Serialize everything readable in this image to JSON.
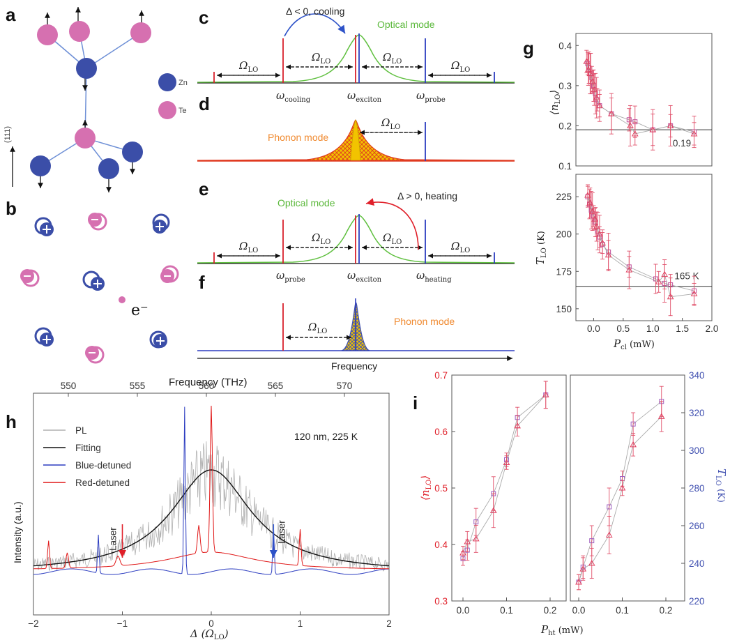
{
  "panel_labels": {
    "a": "a",
    "b": "b",
    "c": "c",
    "d": "d",
    "e": "e",
    "f": "f",
    "g": "g",
    "h": "h",
    "i": "i"
  },
  "panel_a": {
    "legend_zn": "Zn",
    "legend_te": "Te",
    "axis": "(111)",
    "zn_color": "#3b4ea8",
    "te_color": "#d670b0"
  },
  "panel_b": {
    "electron": "e⁻"
  },
  "panel_c": {
    "annotation": "Δ < 0, cooling",
    "mode_label": "Optical mode",
    "omega_lo": "ΩLO",
    "freq_labels": [
      "ωcooling",
      "ωexciton",
      "ωprobe"
    ]
  },
  "panel_d": {
    "mode_label": "Phonon mode",
    "omega_lo": "ΩLO"
  },
  "panel_e": {
    "annotation": "Δ > 0, heating",
    "mode_label": "Optical mode",
    "freq_labels": [
      "ωprobe",
      "ωexciton",
      "ωheating"
    ]
  },
  "panel_f": {
    "mode_label": "Phonon mode",
    "omega_lo": "ΩLO",
    "xlabel": "Frequency"
  },
  "chart_data": [
    {
      "id": "g-top",
      "type": "scatter",
      "ylabel": "⟨nLO⟩",
      "xlim": [
        -0.3,
        2.0
      ],
      "ylim": [
        0.1,
        0.43
      ],
      "yticks": [
        "0.4",
        "0.3",
        "0.2",
        "0.1"
      ],
      "reference_line": {
        "value": 0.19,
        "label": "0.19"
      },
      "series": [
        {
          "marker": "square",
          "x": [
            -0.1,
            -0.08,
            -0.05,
            -0.03,
            0.0,
            0.03,
            0.06,
            0.1,
            0.3,
            0.6,
            0.7,
            1.0,
            1.3,
            1.7
          ],
          "y": [
            0.355,
            0.345,
            0.33,
            0.32,
            0.3,
            0.28,
            0.265,
            0.25,
            0.23,
            0.215,
            0.21,
            0.19,
            0.2,
            0.185
          ]
        },
        {
          "marker": "triangle",
          "x": [
            -0.12,
            -0.09,
            -0.06,
            -0.02,
            0.01,
            0.05,
            0.1,
            0.3,
            0.62,
            0.7,
            1.0,
            1.3,
            1.7
          ],
          "y": [
            0.36,
            0.34,
            0.33,
            0.31,
            0.29,
            0.27,
            0.25,
            0.23,
            0.2,
            0.18,
            0.19,
            0.2,
            0.18
          ]
        }
      ]
    },
    {
      "id": "g-bottom",
      "type": "scatter",
      "ylabel": "TLO (K)",
      "xlabel": "Pcl (mW)",
      "xlim": [
        -0.3,
        2.0
      ],
      "ylim": [
        142,
        240
      ],
      "yticks": [
        "225",
        "200",
        "175",
        "150"
      ],
      "xticks": [
        "0.0",
        "0.5",
        "1.0",
        "1.5",
        "2.0"
      ],
      "reference_line": {
        "value": 165,
        "label": "165 K"
      },
      "series": [
        {
          "marker": "square",
          "x": [
            -0.1,
            -0.07,
            -0.04,
            0.0,
            0.03,
            0.07,
            0.1,
            0.15,
            0.25,
            0.6,
            1.05,
            1.2,
            1.3,
            1.7
          ],
          "y": [
            225,
            220,
            216,
            212,
            208,
            202,
            198,
            193,
            188,
            178,
            170,
            167,
            166,
            162
          ]
        },
        {
          "marker": "triangle",
          "x": [
            -0.1,
            -0.06,
            -0.02,
            0.02,
            0.05,
            0.1,
            0.15,
            0.25,
            0.6,
            1.1,
            1.2,
            1.3,
            1.7
          ],
          "y": [
            226,
            221,
            215,
            210,
            205,
            200,
            194,
            186,
            176,
            168,
            173,
            158,
            160
          ]
        }
      ]
    },
    {
      "id": "h",
      "type": "line",
      "xlabel": "Δ (ΩLO)",
      "ylabel": "Intensity (a.u.)",
      "top_xlabel": "Frequency (THz)",
      "xlim": [
        -2,
        2
      ],
      "xticks": [
        "−2",
        "−1",
        "0",
        "1",
        "2"
      ],
      "top_xticks": [
        "550",
        "555",
        "560",
        "565",
        "570"
      ],
      "annotation": "120 nm, 225 K",
      "laser_labels": [
        "Laser",
        "Laser"
      ],
      "series": [
        {
          "name": "PL",
          "color": "#b0b0b0"
        },
        {
          "name": "Fitting",
          "color": "#111111"
        },
        {
          "name": "Blue-detuned",
          "color": "#2b3cc0"
        },
        {
          "name": "Red-detuned",
          "color": "#e01818"
        }
      ]
    },
    {
      "id": "i-left",
      "type": "scatter",
      "ylabel": "⟨nLO⟩",
      "ylim": [
        0.3,
        0.7
      ],
      "yticks": [
        "0.7",
        "0.6",
        "0.5",
        "0.4",
        "0.3"
      ],
      "xticks": [
        "0.0",
        "0.1",
        "0.2"
      ],
      "series": [
        {
          "marker": "square",
          "x": [
            0.0,
            0.01,
            0.03,
            0.07,
            0.1,
            0.125,
            0.19
          ],
          "y": [
            0.375,
            0.39,
            0.44,
            0.49,
            0.55,
            0.625,
            0.665
          ]
        },
        {
          "marker": "triangle",
          "x": [
            0.0,
            0.01,
            0.03,
            0.07,
            0.1,
            0.125,
            0.19
          ],
          "y": [
            0.385,
            0.405,
            0.41,
            0.46,
            0.545,
            0.61,
            0.665
          ]
        }
      ]
    },
    {
      "id": "i-right",
      "type": "scatter",
      "ylabel": "TLO (K)",
      "xlabel": "Pht (mW)",
      "ylim": [
        220,
        340
      ],
      "yticks": [
        "340",
        "320",
        "300",
        "280",
        "260",
        "240",
        "220"
      ],
      "xticks": [
        "0.0",
        "0.1",
        "0.2"
      ],
      "series": [
        {
          "marker": "square",
          "x": [
            0.0,
            0.01,
            0.03,
            0.07,
            0.1,
            0.125,
            0.19
          ],
          "y": [
            230,
            238,
            252,
            270,
            285,
            314,
            326
          ]
        },
        {
          "marker": "triangle",
          "x": [
            0.0,
            0.01,
            0.03,
            0.07,
            0.1,
            0.125,
            0.19
          ],
          "y": [
            230,
            237,
            240,
            255,
            280,
            303,
            318
          ]
        }
      ]
    }
  ]
}
